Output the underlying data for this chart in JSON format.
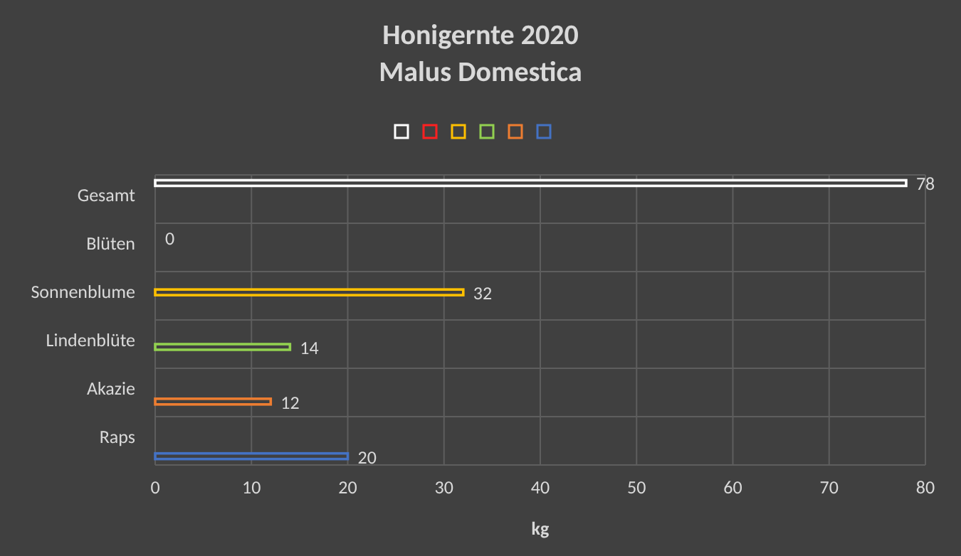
{
  "chart_data": {
    "type": "bar",
    "orientation": "horizontal",
    "title": "Honigernte 2020\nMalus Domestica",
    "xlabel": "kg",
    "categories": [
      "Gesamt",
      "Blüten",
      "Sonnenblume",
      "Lindenblüte",
      "Akazie",
      "Raps"
    ],
    "series": [
      {
        "color": "#ffffff",
        "values": [
          78,
          null,
          null,
          null,
          null,
          null
        ]
      },
      {
        "color": "#ff2020",
        "values": [
          null,
          0,
          null,
          null,
          null,
          null
        ]
      },
      {
        "color": "#ffc000",
        "values": [
          null,
          null,
          32,
          null,
          null,
          null
        ]
      },
      {
        "color": "#92d050",
        "values": [
          null,
          null,
          null,
          14,
          null,
          null
        ]
      },
      {
        "color": "#ed7d31",
        "values": [
          null,
          null,
          null,
          null,
          12,
          null
        ]
      },
      {
        "color": "#4472c4",
        "values": [
          null,
          null,
          null,
          null,
          null,
          20
        ]
      }
    ],
    "xlim": [
      0,
      80
    ],
    "xticks": [
      0,
      10,
      20,
      30,
      40,
      50,
      60,
      70,
      80
    ],
    "grid": true,
    "data_labels": true
  }
}
